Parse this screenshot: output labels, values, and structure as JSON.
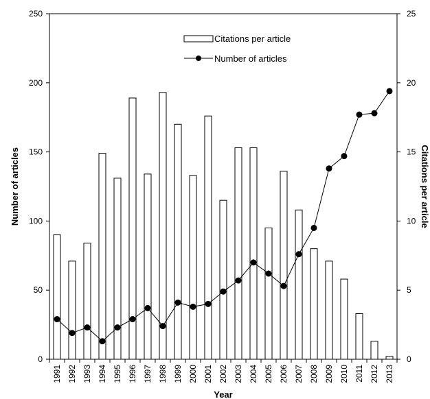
{
  "chart_data": {
    "type": "bar+line",
    "categories": [
      "1991",
      "1992",
      "1993",
      "1994",
      "1995",
      "1996",
      "1997",
      "1998",
      "1999",
      "2000",
      "2001",
      "2002",
      "2003",
      "2004",
      "2005",
      "2006",
      "2007",
      "2008",
      "2009",
      "2010",
      "2011",
      "2012",
      "2013"
    ],
    "series": [
      {
        "name": "Citations per article",
        "kind": "bar",
        "axis": "right",
        "values": [
          9.0,
          7.1,
          8.4,
          14.9,
          13.1,
          18.9,
          13.4,
          19.3,
          17.0,
          13.3,
          17.6,
          11.5,
          15.3,
          15.3,
          9.5,
          13.6,
          10.8,
          8.0,
          7.1,
          5.8,
          3.3,
          1.3,
          0.2
        ]
      },
      {
        "name": "Number of articles",
        "kind": "line",
        "axis": "left",
        "values": [
          29,
          19,
          23,
          13,
          23,
          29,
          37,
          24,
          41,
          38,
          40,
          49,
          57,
          70,
          62,
          53,
          76,
          95,
          138,
          147,
          177,
          178,
          194
        ]
      }
    ],
    "xlabel": "Year",
    "ylabel_left": "Number of articles",
    "ylabel_right": "Citations per article",
    "ylim_left": [
      0,
      250
    ],
    "ylim_right": [
      0,
      25
    ],
    "yticks_left": [
      "0",
      "50",
      "100",
      "150",
      "200",
      "250"
    ],
    "yticks_right": [
      "0",
      "5",
      "10",
      "15",
      "20",
      "25"
    ],
    "grid": false,
    "legend_position": "top-center",
    "colors": {
      "bar_fill": "#ffffff",
      "bar_stroke": "#000000",
      "line": "#000000",
      "marker": "#000000"
    }
  }
}
